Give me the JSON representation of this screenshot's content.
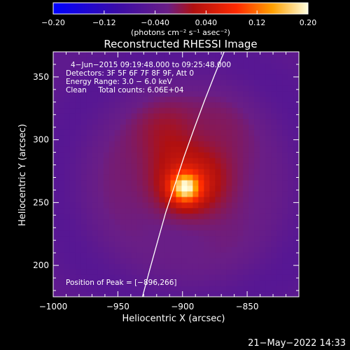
{
  "chart_data": {
    "type": "heatmap",
    "title": "Reconstructed RHESSI Image",
    "xlabel": "Heliocentric X (arcsec)",
    "ylabel": "Heliocentric Y (arcsec)",
    "xlim": [
      -1000,
      -810
    ],
    "ylim": [
      175,
      370
    ],
    "xticks": [
      -1000,
      -950,
      -900,
      -850
    ],
    "yticks": [
      200,
      250,
      300,
      350
    ],
    "xtick_labels": [
      "−1000",
      "−950",
      "−900",
      "−850"
    ],
    "ytick_labels": [
      "200",
      "250",
      "300",
      "350"
    ],
    "colorbar": {
      "range": [
        -0.2,
        0.2
      ],
      "ticks": [
        -0.2,
        -0.12,
        -0.04,
        0.04,
        0.12,
        0.2
      ],
      "tick_labels": [
        "−0.20",
        "−0.12",
        "−0.040",
        "0.040",
        "0.12",
        "0.20"
      ],
      "units": "(photons cm⁻² s⁻¹ asec⁻²)"
    },
    "annotations": [
      "4−Jun−2015 09:19:48.000 to 09:25:48.000",
      "Detectors: 3F 5F 6F 7F 8F 9F, Att 0",
      "Energy Range: 3.0 − 6.0 keV",
      "Clean     Total counts: 6.06E+04"
    ],
    "peak_label": "Position of Peak = [−896,266]",
    "peak": {
      "x": -896,
      "y": 266,
      "value": 0.2
    },
    "source_components": [
      {
        "x": -898,
        "y": 262,
        "sigma_x": 8,
        "sigma_y": 8,
        "amplitude": 0.16
      },
      {
        "x": -905,
        "y": 268,
        "sigma_x": 34,
        "sigma_y": 34,
        "amplitude": 0.07
      },
      {
        "x": -912,
        "y": 305,
        "sigma_x": 16,
        "sigma_y": 18,
        "amplitude": 0.03
      },
      {
        "x": -870,
        "y": 275,
        "sigma_x": 20,
        "sigma_y": 40,
        "amplitude": 0.03
      }
    ],
    "limb_curve": {
      "x": [
        -931,
        -925,
        -919,
        -913,
        -906,
        -899,
        -891,
        -883,
        -875,
        -867
      ],
      "y": [
        175,
        198,
        220,
        242,
        264,
        286,
        309,
        331,
        352,
        372
      ]
    }
  },
  "footer": {
    "timestamp": "21−May−2022 14:33"
  }
}
